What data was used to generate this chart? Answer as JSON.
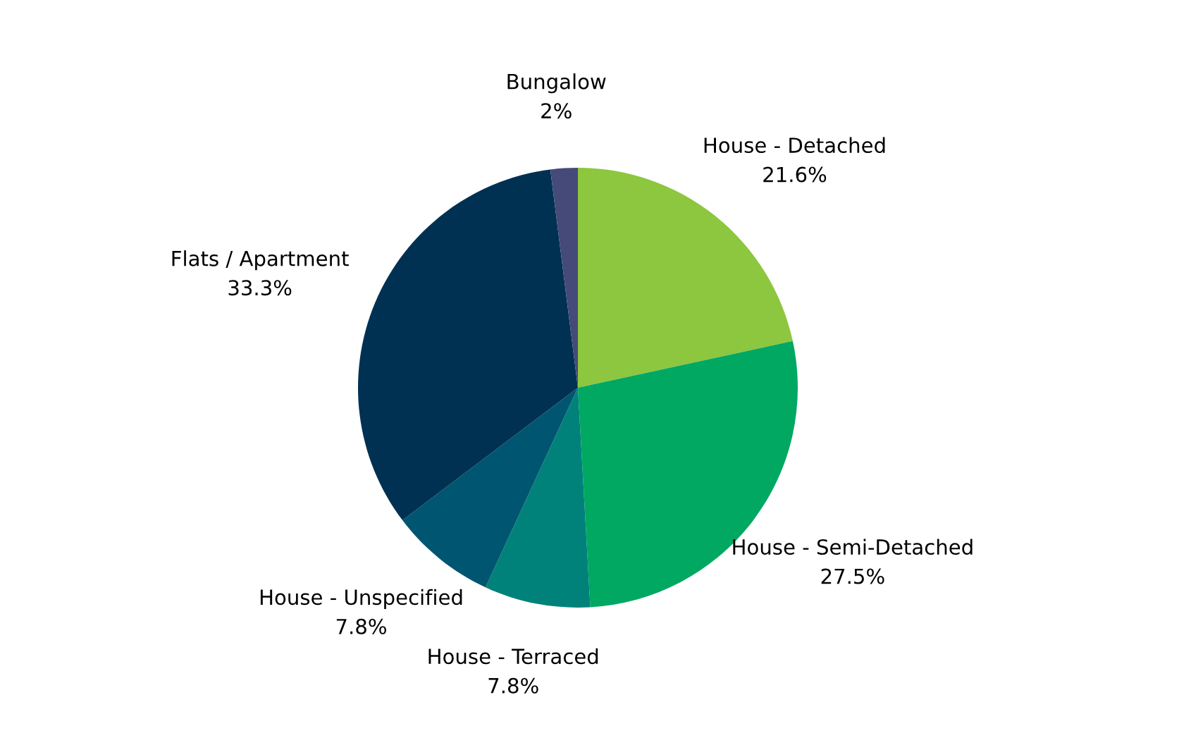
{
  "chart_data": {
    "type": "pie",
    "categories": [
      "House - Detached",
      "House - Semi-Detached",
      "House - Terraced",
      "House - Unspecified",
      "Flats / Apartment",
      "Bungalow"
    ],
    "values": [
      21.6,
      27.5,
      7.8,
      7.8,
      33.3,
      2
    ],
    "value_labels": [
      "21.6%",
      "27.5%",
      "7.8%",
      "7.8%",
      "33.3%",
      "2%"
    ],
    "colors": [
      "#8dc63f",
      "#00a862",
      "#00827a",
      "#005570",
      "#003152",
      "#454a78"
    ],
    "legend": false
  }
}
